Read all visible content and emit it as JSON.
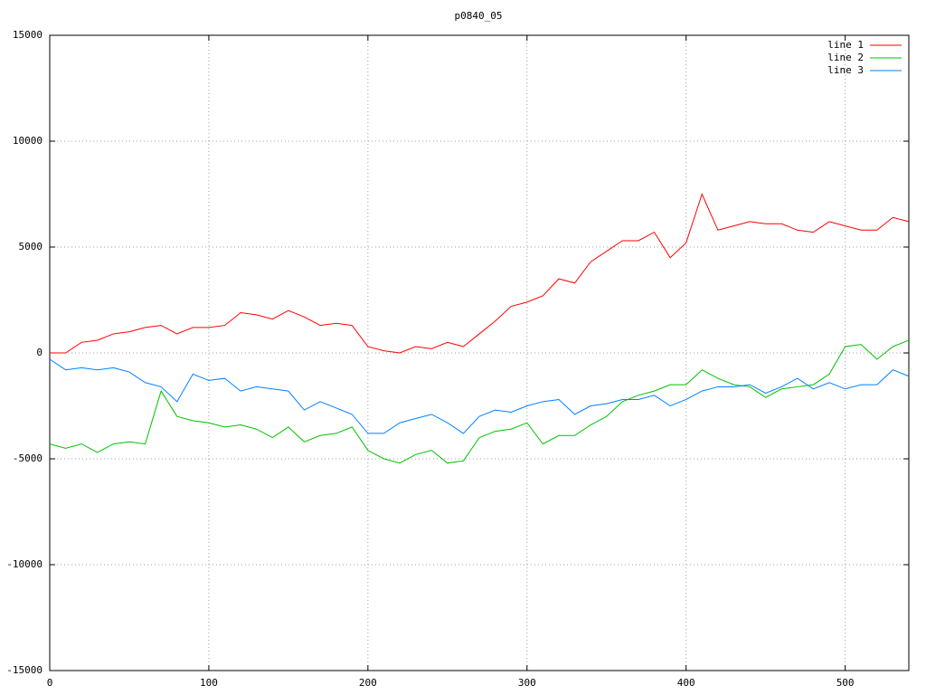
{
  "chart_data": {
    "type": "line",
    "title": "p0840_05",
    "x": [
      0,
      10,
      20,
      30,
      40,
      50,
      60,
      70,
      80,
      90,
      100,
      110,
      120,
      130,
      140,
      150,
      160,
      170,
      180,
      190,
      200,
      210,
      220,
      230,
      240,
      250,
      260,
      270,
      280,
      290,
      300,
      310,
      320,
      330,
      340,
      350,
      360,
      370,
      380,
      390,
      400,
      410,
      420,
      430,
      440,
      450,
      460,
      470,
      480,
      490,
      500,
      510,
      520,
      530,
      540
    ],
    "series": [
      {
        "name": "line 1",
        "color": "#ff0000",
        "values": [
          0,
          0,
          500,
          600,
          900,
          1000,
          1200,
          1300,
          900,
          1200,
          1200,
          1300,
          1900,
          1800,
          1600,
          2000,
          1700,
          1300,
          1400,
          1300,
          300,
          100,
          0,
          300,
          200,
          500,
          300,
          900,
          1500,
          2200,
          2400,
          2700,
          3500,
          3300,
          4300,
          4800,
          5300,
          5300,
          5700,
          4500,
          5200,
          7500,
          5800,
          6000,
          6200,
          6100,
          6100,
          5800,
          5700,
          6200,
          6000,
          5800,
          5800,
          6400,
          6200
        ]
      },
      {
        "name": "line 2",
        "color": "#00c000",
        "values": [
          -4300,
          -4500,
          -4300,
          -4700,
          -4300,
          -4200,
          -4300,
          -1800,
          -3000,
          -3200,
          -3300,
          -3500,
          -3400,
          -3600,
          -4000,
          -3500,
          -4200,
          -3900,
          -3800,
          -3500,
          -4600,
          -5000,
          -5200,
          -4800,
          -4600,
          -5200,
          -5100,
          -4000,
          -3700,
          -3600,
          -3300,
          -4300,
          -3900,
          -3900,
          -3400,
          -3000,
          -2300,
          -2000,
          -1800,
          -1500,
          -1500,
          -800,
          -1200,
          -1500,
          -1600,
          -2100,
          -1700,
          -1600,
          -1500,
          -1000,
          300,
          400,
          -300,
          300,
          600
        ]
      },
      {
        "name": "line 3",
        "color": "#0080ff",
        "values": [
          -300,
          -800,
          -700,
          -800,
          -700,
          -900,
          -1400,
          -1600,
          -2300,
          -1000,
          -1300,
          -1200,
          -1800,
          -1600,
          -1700,
          -1800,
          -2700,
          -2300,
          -2600,
          -2900,
          -3800,
          -3800,
          -3300,
          -3100,
          -2900,
          -3300,
          -3800,
          -3000,
          -2700,
          -2800,
          -2500,
          -2300,
          -2200,
          -2900,
          -2500,
          -2400,
          -2200,
          -2200,
          -2000,
          -2500,
          -2200,
          -1800,
          -1600,
          -1600,
          -1500,
          -1900,
          -1600,
          -1200,
          -1700,
          -1400,
          -1700,
          -1500,
          -1500,
          -800,
          -1100
        ]
      }
    ],
    "xlim": [
      0,
      540
    ],
    "xticks": [
      0,
      100,
      200,
      300,
      400,
      500
    ],
    "ylim": [
      -15000,
      15000
    ],
    "yticks": [
      -15000,
      -10000,
      -5000,
      0,
      5000,
      10000,
      15000
    ],
    "grid": true,
    "legend": "top-right"
  }
}
